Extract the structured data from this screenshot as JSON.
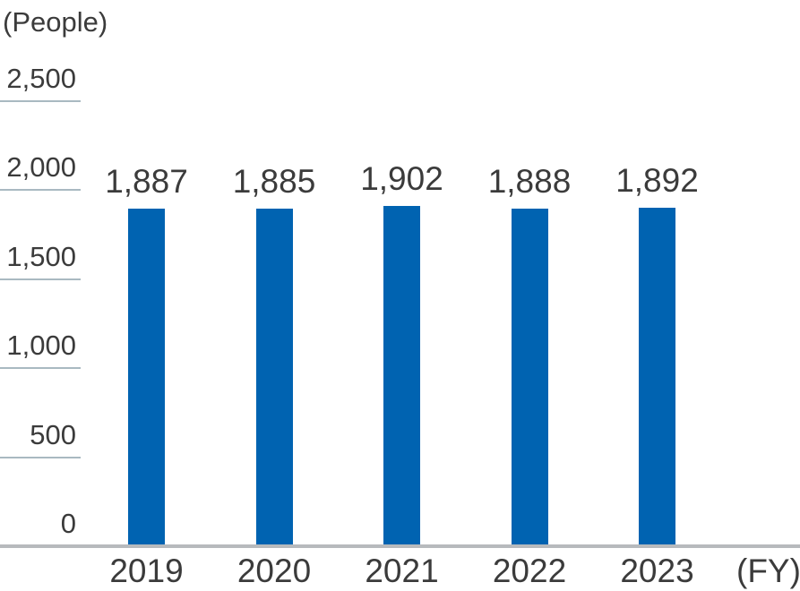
{
  "chart_data": {
    "type": "bar",
    "title": "",
    "unit_label": "(People)",
    "x_axis_label": "(FY)",
    "categories": [
      "2019",
      "2020",
      "2021",
      "2022",
      "2023"
    ],
    "values": [
      1887,
      1885,
      1902,
      1888,
      1892
    ],
    "value_labels": [
      "1,887",
      "1,885",
      "1,902",
      "1,888",
      "1,892"
    ],
    "ylim": [
      0,
      2500
    ],
    "yticks": [
      {
        "value": 0,
        "label": "0"
      },
      {
        "value": 500,
        "label": "500"
      },
      {
        "value": 1000,
        "label": "1,000"
      },
      {
        "value": 1500,
        "label": "1,500"
      },
      {
        "value": 2000,
        "label": "2,000"
      },
      {
        "value": 2500,
        "label": "2,500"
      }
    ],
    "grid": "short-left-segments",
    "legend": "none",
    "colors": {
      "bar": "#0063b1",
      "text": "#3b3b3b",
      "gridline": "#a9b9c1",
      "baseline": "#b7babd"
    }
  }
}
